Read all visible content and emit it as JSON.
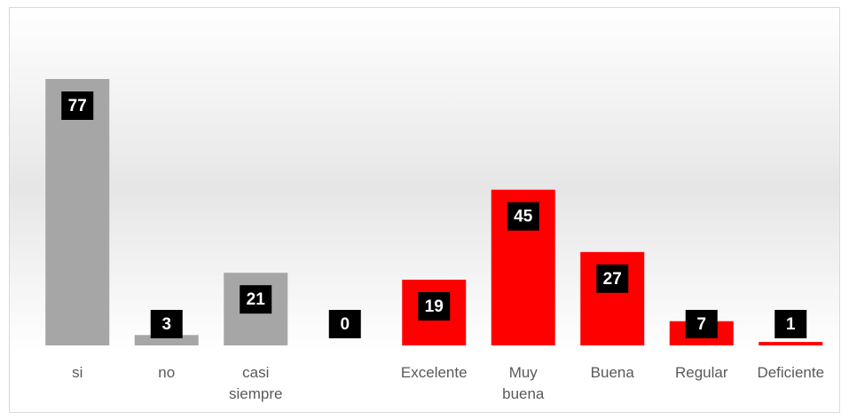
{
  "chart_data": {
    "type": "bar",
    "categories": [
      "si",
      "no",
      "casi siempre",
      null,
      "Excelente",
      "Muy buena",
      "Buena",
      "Regular",
      "Deficiente"
    ],
    "values": [
      77,
      3,
      21,
      0,
      19,
      45,
      27,
      7,
      1
    ],
    "colors": [
      "#a6a6a6",
      "#a6a6a6",
      "#a6a6a6",
      "#a6a6a6",
      "#ff0000",
      "#ff0000",
      "#ff0000",
      "#ff0000",
      "#ff0000"
    ]
  }
}
